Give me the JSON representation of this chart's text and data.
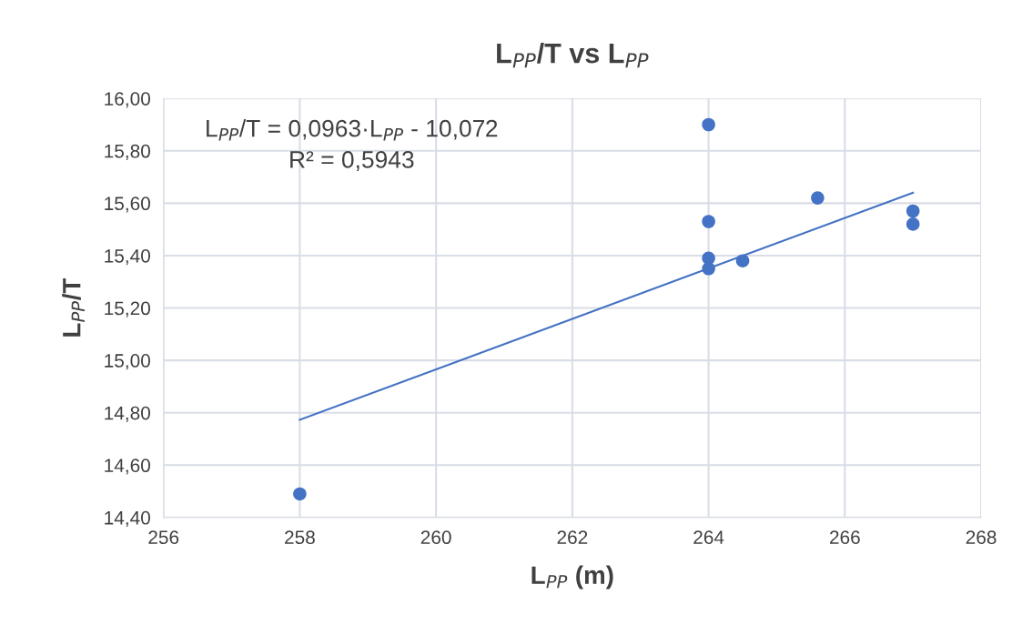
{
  "chart_data": {
    "type": "scatter",
    "title": "L$_{PP}$/T vs L$_{PP}$",
    "xlabel": "L$_{PP}$ (m)",
    "ylabel": "L$_{PP}$/T",
    "series": [
      {
        "color": "#4472c4",
        "marker": "circle",
        "x": [
          258,
          264,
          264,
          264,
          264,
          264.5,
          265.6,
          267,
          267
        ],
        "values": [
          14.49,
          15.9,
          15.53,
          15.39,
          15.35,
          15.38,
          15.62,
          15.57,
          15.52
        ]
      },
      {
        "type": "line",
        "color": "#4472c4",
        "marker": "none",
        "line_style": "solid",
        "x": [
          258,
          267
        ],
        "values": [
          14.773,
          15.64
        ]
      }
    ],
    "annotations": [
      "L$_{PP}$/T = 0,0963·L$_{PP}$ - 10,072\nR² = 0,5943"
    ],
    "xlim": [
      256,
      268
    ],
    "xticks": [
      256,
      258,
      260,
      262,
      264,
      266,
      268
    ],
    "ylim": [
      14.4,
      16.0
    ],
    "yticks": [
      {
        "value": 14.4,
        "label": "14,40"
      },
      {
        "value": 14.6,
        "label": "14,60"
      },
      {
        "value": 14.8,
        "label": "14,80"
      },
      {
        "value": 15.0,
        "label": "15,00"
      },
      {
        "value": 15.2,
        "label": "15,20"
      },
      {
        "value": 15.4,
        "label": "15,40"
      },
      {
        "value": 15.6,
        "label": "15,60"
      },
      {
        "value": 15.8,
        "label": "15,80"
      },
      {
        "value": 16.0,
        "label": "16,00"
      }
    ],
    "grid": true,
    "legend": false
  }
}
